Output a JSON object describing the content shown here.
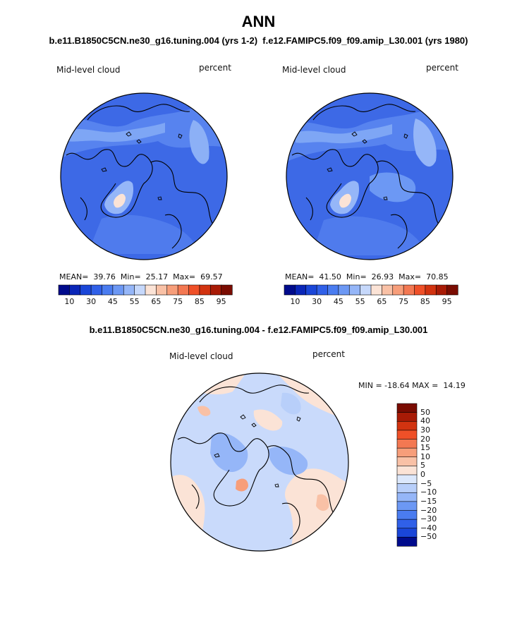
{
  "header": {
    "title": "ANN",
    "subtitle_left": "b.e11.B1850C5CN.ne30_g16.tuning.004 (yrs 1-2)",
    "subtitle_right": "f.e12.FAMIPC5.f09_f09.amip_L30.001 (yrs 1980)"
  },
  "panels": [
    {
      "variable": "Mid-level cloud",
      "units": "percent",
      "mean_label": "MEAN=",
      "mean": "39.76",
      "min_label": "Min=",
      "min": "25.17",
      "max_label": "Max=",
      "max": "69.57"
    },
    {
      "variable": "Mid-level cloud",
      "units": "percent",
      "mean_label": "MEAN=",
      "mean": "41.50",
      "min_label": "Min=",
      "min": "26.93",
      "max_label": "Max=",
      "max": "70.85"
    }
  ],
  "abs_colorbar": {
    "tick_labels": [
      "10",
      "30",
      "45",
      "55",
      "65",
      "75",
      "85",
      "95"
    ],
    "colors": [
      "#000b8c",
      "#0a26b8",
      "#1a46d8",
      "#3060e8",
      "#4a7cf0",
      "#6c98f4",
      "#95b6f8",
      "#c6d8fb",
      "#fbe3d6",
      "#f9c1a6",
      "#f79e7a",
      "#f37852",
      "#ef5028",
      "#d23310",
      "#a81b06",
      "#7a0c02"
    ]
  },
  "difference": {
    "title": "b.e11.B1850C5CN.ne30_g16.tuning.004 - f.e12.FAMIPC5.f09_f09.amip_L30.001",
    "variable": "Mid-level cloud",
    "units": "percent",
    "minmax": "MIN = -18.64 MAX =  14.19"
  },
  "diff_colorbar": {
    "labels": [
      "50",
      "40",
      "30",
      "20",
      "15",
      "10",
      "5",
      "0",
      "−5",
      "−10",
      "−15",
      "−20",
      "−30",
      "−40",
      "−50"
    ],
    "colors": [
      "#7a0c02",
      "#a81b06",
      "#d23310",
      "#ef5028",
      "#f37852",
      "#f79e7a",
      "#f9c1a6",
      "#fbe3d6",
      "#dce8fc",
      "#b8cffa",
      "#95b6f8",
      "#6c98f4",
      "#4a7cf0",
      "#3060e8",
      "#1a46d8",
      "#000b8c"
    ]
  },
  "legend_colors": {
    "map_base_blue": "#3d69e6",
    "map_diff_base": "#c9dafb",
    "land_outline": "#000000"
  }
}
